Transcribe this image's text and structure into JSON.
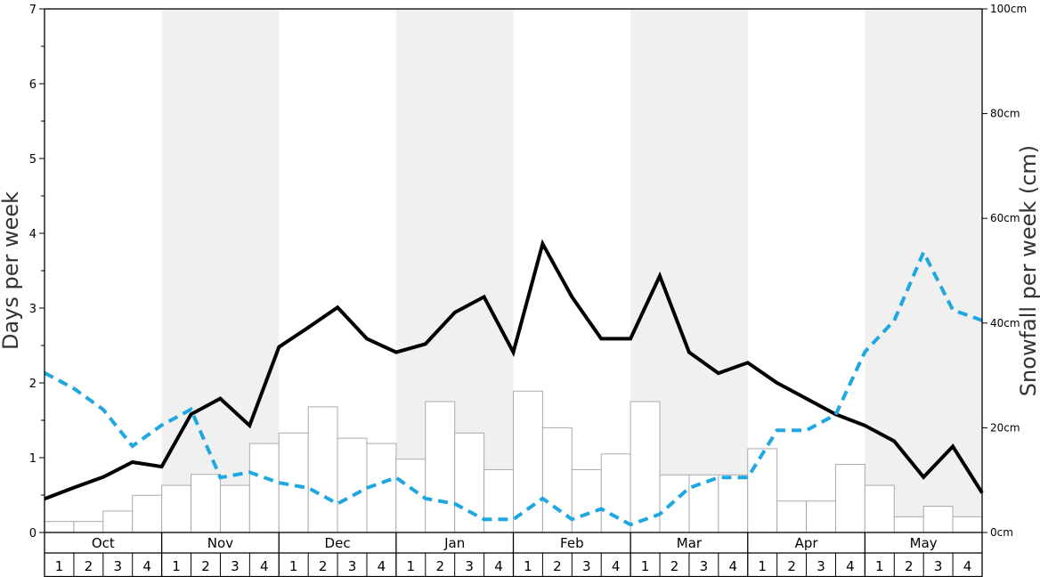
{
  "chart_data": {
    "type": "bar",
    "ylabel": "Days per week",
    "y2label": "Snowfall per week (cm)",
    "ylim": [
      0,
      7
    ],
    "y2lim": [
      0,
      100
    ],
    "yticks": [
      "0",
      "1",
      "2",
      "3",
      "4",
      "5",
      "6",
      "7"
    ],
    "y2ticks": [
      "0cm",
      "20cm",
      "40cm",
      "60cm",
      "80cm",
      "100cm"
    ],
    "months": [
      "Oct",
      "Nov",
      "Dec",
      "Jan",
      "Feb",
      "Mar",
      "Apr",
      "May"
    ],
    "weeks": [
      "1",
      "2",
      "3",
      "4"
    ],
    "series": [
      {
        "kind": "bar",
        "axis": "right",
        "color": "#ffffff",
        "edge": "#aaaaaa",
        "values": [
          2.1,
          2.1,
          4.1,
          7.1,
          9.0,
          11.1,
          9.0,
          17.0,
          19.0,
          24.0,
          18.0,
          17.0,
          14.0,
          25.0,
          19.0,
          12.0,
          27.0,
          20.0,
          12.0,
          15.0,
          25.0,
          11.0,
          11.0,
          11.0,
          16.0,
          6.0,
          6.0,
          13.0,
          9.0,
          3.0,
          5.0,
          3.0
        ]
      },
      {
        "kind": "line",
        "axis": "left",
        "color": "#000000",
        "style": "solid",
        "values": [
          0.45,
          0.6,
          0.74,
          0.94,
          0.88,
          1.58,
          1.79,
          1.43,
          2.48,
          2.74,
          3.01,
          2.59,
          2.41,
          2.52,
          2.94,
          3.15,
          2.41,
          3.86,
          3.15,
          2.59,
          2.59,
          3.43,
          2.41,
          2.13,
          2.27,
          2.0,
          1.79,
          1.58,
          1.43,
          1.22,
          0.74,
          1.15,
          0.53
        ]
      },
      {
        "kind": "line",
        "axis": "right",
        "color": "#1fa7e1",
        "style": "dashed",
        "values": [
          30.5,
          27.5,
          23.5,
          16.5,
          20.5,
          23.5,
          10.5,
          11.5,
          9.5,
          8.5,
          5.5,
          8.5,
          10.5,
          6.5,
          5.5,
          2.5,
          2.5,
          6.5,
          2.5,
          4.5,
          1.5,
          3.5,
          8.5,
          10.5,
          10.5,
          19.5,
          19.5,
          22.5,
          34.5,
          40.5,
          53.5,
          42.5,
          40.5
        ]
      }
    ],
    "grid": false,
    "shading": "alternate months"
  }
}
